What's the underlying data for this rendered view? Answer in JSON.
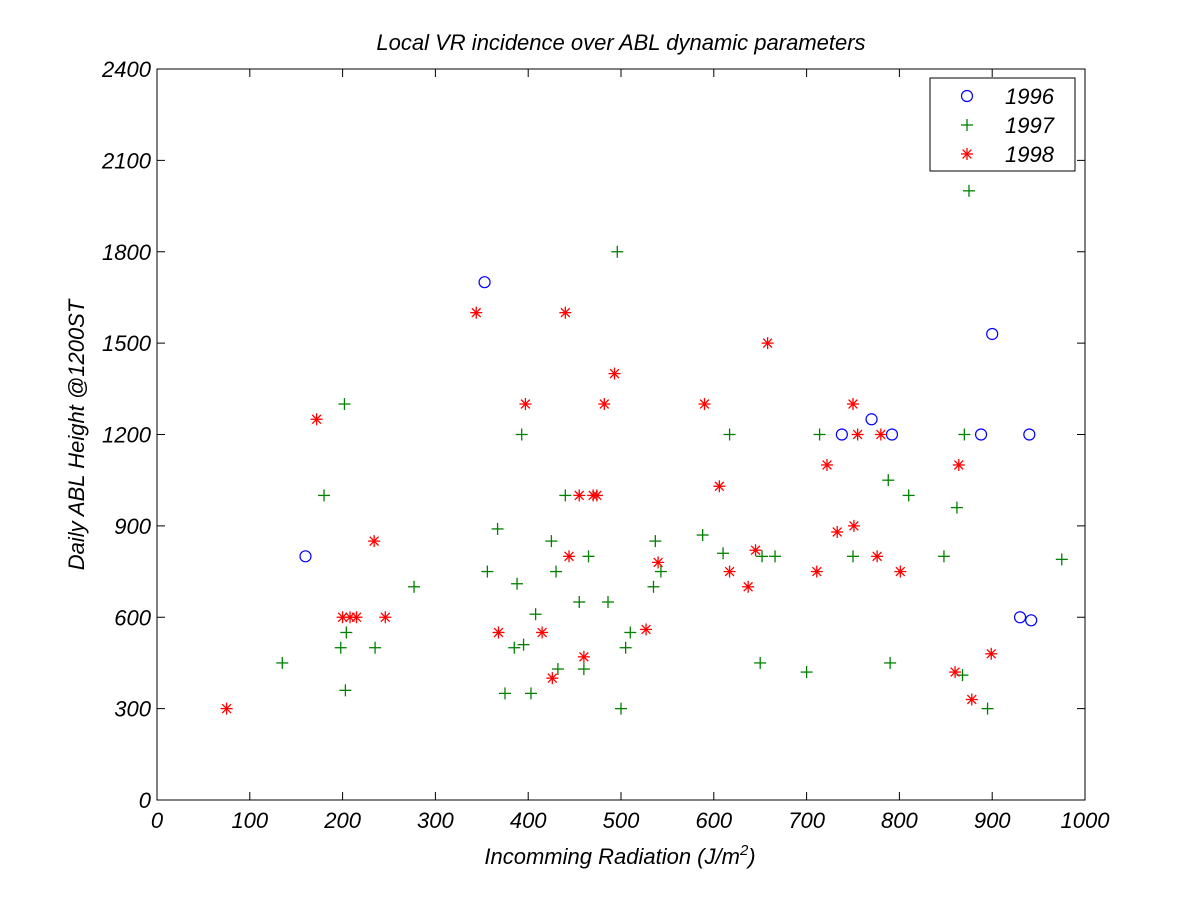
{
  "chart_data": {
    "type": "scatter",
    "title": "Local VR incidence over ABL dynamic parameters",
    "xlabel": "Incomming Radiation (J/m",
    "xlabel_superscript": "2",
    "xlabel_suffix": ")",
    "ylabel": "Daily ABL Height @1200ST",
    "xlim": [
      0,
      1000
    ],
    "ylim": [
      0,
      2400
    ],
    "xticks": [
      0,
      100,
      200,
      300,
      400,
      500,
      600,
      700,
      800,
      900,
      1000
    ],
    "yticks": [
      0,
      300,
      600,
      900,
      1200,
      1500,
      1800,
      2100,
      2400
    ],
    "xtick_labels": [
      "0",
      "100",
      "200",
      "300",
      "400",
      "500",
      "600",
      "700",
      "800",
      "900",
      "1000"
    ],
    "ytick_labels": [
      "0",
      "300",
      "600",
      "900",
      "1200",
      "1500",
      "1800",
      "2100",
      "2400"
    ],
    "grid": false,
    "legend_position": "top-right",
    "series": [
      {
        "name": "1996",
        "marker": "circle",
        "color": "#0000ff",
        "points": [
          [
            160,
            800
          ],
          [
            353,
            1700
          ],
          [
            738,
            1200
          ],
          [
            770,
            1250
          ],
          [
            792,
            1200
          ],
          [
            888,
            1200
          ],
          [
            900,
            1530
          ],
          [
            930,
            600
          ],
          [
            940,
            1200
          ],
          [
            942,
            590
          ]
        ]
      },
      {
        "name": "1997",
        "marker": "plus",
        "color": "#008000",
        "points": [
          [
            135,
            450
          ],
          [
            180,
            1000
          ],
          [
            198,
            500
          ],
          [
            202,
            1300
          ],
          [
            203,
            360
          ],
          [
            204,
            550
          ],
          [
            235,
            500
          ],
          [
            277,
            700
          ],
          [
            356,
            750
          ],
          [
            367,
            890
          ],
          [
            375,
            350
          ],
          [
            388,
            710
          ],
          [
            385,
            500
          ],
          [
            393,
            1200
          ],
          [
            395,
            510
          ],
          [
            403,
            350
          ],
          [
            408,
            610
          ],
          [
            425,
            850
          ],
          [
            430,
            750
          ],
          [
            432,
            430
          ],
          [
            440,
            1000
          ],
          [
            455,
            650
          ],
          [
            460,
            430
          ],
          [
            465,
            800
          ],
          [
            486,
            650
          ],
          [
            496,
            1800
          ],
          [
            500,
            300
          ],
          [
            505,
            500
          ],
          [
            510,
            550
          ],
          [
            535,
            700
          ],
          [
            537,
            850
          ],
          [
            543,
            750
          ],
          [
            588,
            870
          ],
          [
            610,
            810
          ],
          [
            617,
            1200
          ],
          [
            650,
            450
          ],
          [
            652,
            800
          ],
          [
            666,
            800
          ],
          [
            700,
            420
          ],
          [
            714,
            1200
          ],
          [
            750,
            800
          ],
          [
            788,
            1050
          ],
          [
            790,
            450
          ],
          [
            810,
            1000
          ],
          [
            848,
            800
          ],
          [
            862,
            960
          ],
          [
            868,
            410
          ],
          [
            870,
            1200
          ],
          [
            875,
            2000
          ],
          [
            895,
            300
          ],
          [
            975,
            790
          ]
        ]
      },
      {
        "name": "1998",
        "marker": "asterisk",
        "color": "#ff0000",
        "points": [
          [
            75,
            300
          ],
          [
            172,
            1250
          ],
          [
            200,
            600
          ],
          [
            208,
            600
          ],
          [
            215,
            600
          ],
          [
            234,
            850
          ],
          [
            246,
            600
          ],
          [
            344,
            1600
          ],
          [
            368,
            550
          ],
          [
            397,
            1300
          ],
          [
            415,
            550
          ],
          [
            426,
            400
          ],
          [
            440,
            1600
          ],
          [
            444,
            800
          ],
          [
            455,
            1000
          ],
          [
            460,
            470
          ],
          [
            470,
            1000
          ],
          [
            474,
            1000
          ],
          [
            482,
            1300
          ],
          [
            493,
            1400
          ],
          [
            527,
            560
          ],
          [
            540,
            780
          ],
          [
            590,
            1300
          ],
          [
            606,
            1030
          ],
          [
            617,
            750
          ],
          [
            637,
            700
          ],
          [
            645,
            820
          ],
          [
            658,
            1500
          ],
          [
            711,
            750
          ],
          [
            722,
            1100
          ],
          [
            733,
            880
          ],
          [
            750,
            1300
          ],
          [
            751,
            900
          ],
          [
            755,
            1200
          ],
          [
            776,
            800
          ],
          [
            780,
            1200
          ],
          [
            801,
            750
          ],
          [
            860,
            420
          ],
          [
            864,
            1100
          ],
          [
            878,
            330
          ],
          [
            899,
            480
          ]
        ]
      }
    ]
  }
}
